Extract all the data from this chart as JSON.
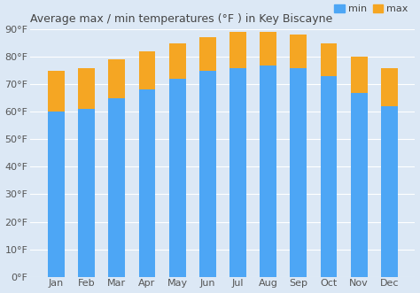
{
  "months": [
    "Jan",
    "Feb",
    "Mar",
    "Apr",
    "May",
    "Jun",
    "Jul",
    "Aug",
    "Sep",
    "Oct",
    "Nov",
    "Dec"
  ],
  "min_temps": [
    60,
    61,
    65,
    68,
    72,
    75,
    76,
    77,
    76,
    73,
    67,
    62
  ],
  "max_temps": [
    75,
    76,
    79,
    82,
    85,
    87,
    89,
    89,
    88,
    85,
    80,
    76
  ],
  "min_color": "#4da6f5",
  "max_color": "#f5a623",
  "title": "Average max / min temperatures (°F ) in Key Biscayne",
  "ylim": [
    0,
    90
  ],
  "yticks": [
    0,
    10,
    20,
    30,
    40,
    50,
    60,
    70,
    80,
    90
  ],
  "ytick_labels": [
    "0°F",
    "10°F",
    "20°F",
    "30°F",
    "40°F",
    "50°F",
    "60°F",
    "70°F",
    "80°F",
    "90°F"
  ],
  "background_color": "#dce8f5",
  "plot_bg_color": "#dce8f5",
  "title_fontsize": 9,
  "tick_fontsize": 8,
  "legend_fontsize": 8,
  "bar_width": 0.55,
  "legend_labels": [
    "min",
    "max"
  ]
}
